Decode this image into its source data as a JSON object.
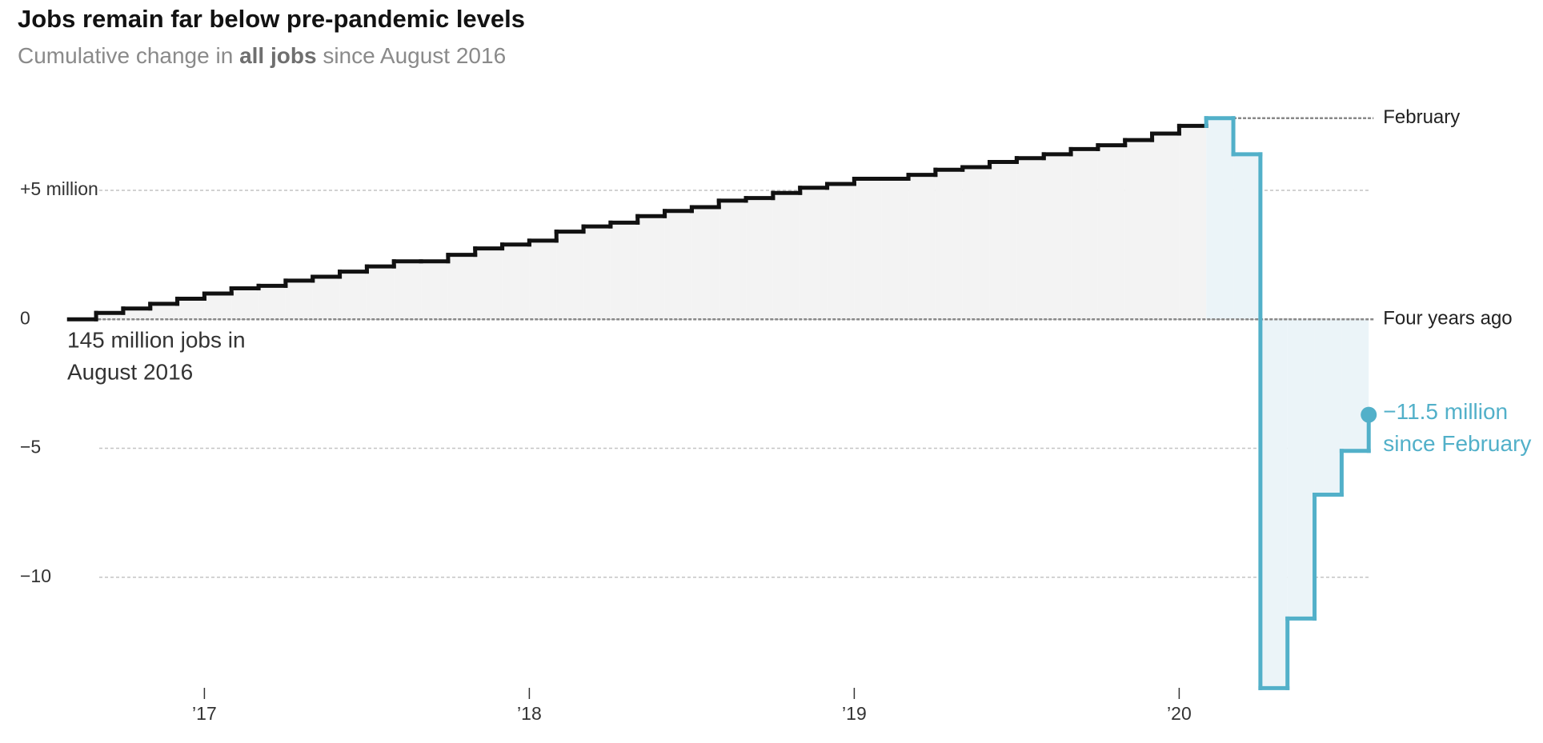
{
  "chart_data": {
    "type": "step",
    "title": "Jobs remain far below pre-pandemic levels",
    "subtitle": [
      "Cumulative change in",
      "all jobs",
      "since August 2016"
    ],
    "x": [
      "2016-08",
      "2016-09",
      "2016-10",
      "2016-11",
      "2016-12",
      "2017-01",
      "2017-02",
      "2017-03",
      "2017-04",
      "2017-05",
      "2017-06",
      "2017-07",
      "2017-08",
      "2017-09",
      "2017-10",
      "2017-11",
      "2017-12",
      "2018-01",
      "2018-02",
      "2018-03",
      "2018-04",
      "2018-05",
      "2018-06",
      "2018-07",
      "2018-08",
      "2018-09",
      "2018-10",
      "2018-11",
      "2018-12",
      "2019-01",
      "2019-02",
      "2019-03",
      "2019-04",
      "2019-05",
      "2019-06",
      "2019-07",
      "2019-08",
      "2019-09",
      "2019-10",
      "2019-11",
      "2019-12",
      "2020-01",
      "2020-02",
      "2020-03",
      "2020-04",
      "2020-05",
      "2020-06",
      "2020-07",
      "2020-08"
    ],
    "series": [
      {
        "color": "#111111",
        "area_color": "#f3f3f3",
        "values": [
          0,
          0.25,
          0.42,
          0.6,
          0.8,
          1.0,
          1.2,
          1.3,
          1.5,
          1.65,
          1.85,
          2.05,
          2.25,
          2.25,
          2.5,
          2.75,
          2.9,
          3.05,
          3.4,
          3.6,
          3.75,
          4.0,
          4.2,
          4.35,
          4.6,
          4.7,
          4.9,
          5.1,
          5.25,
          5.45,
          5.45,
          5.6,
          5.8,
          5.9,
          6.1,
          6.25,
          6.4,
          6.6,
          6.75,
          6.95,
          7.2,
          7.5,
          null,
          null,
          null,
          null,
          null,
          null,
          null
        ]
      },
      {
        "color": "#52b0c9",
        "area_color": "#ebf4f8",
        "values": [
          null,
          null,
          null,
          null,
          null,
          null,
          null,
          null,
          null,
          null,
          null,
          null,
          null,
          null,
          null,
          null,
          null,
          null,
          null,
          null,
          null,
          null,
          null,
          null,
          null,
          null,
          null,
          null,
          null,
          null,
          null,
          null,
          null,
          null,
          null,
          null,
          null,
          null,
          null,
          null,
          null,
          null,
          7.8,
          6.4,
          -14.3,
          -11.6,
          -6.8,
          -5.1,
          -3.7
        ]
      }
    ],
    "xlim": [
      "2016-07",
      "2021-01"
    ],
    "xticks": [
      {
        "value": "2017-01",
        "label": "’17"
      },
      {
        "value": "2018-01",
        "label": "’18"
      },
      {
        "value": "2019-01",
        "label": "’19"
      },
      {
        "value": "2020-01",
        "label": "’20"
      }
    ],
    "ylim": [
      -15,
      9
    ],
    "yticks": [
      {
        "value": 5,
        "label": "+5 million"
      },
      0,
      {
        "value": -5,
        "label": "−5"
      },
      {
        "value": -10,
        "label": "−10"
      }
    ],
    "grid": true,
    "annotations": {
      "start": [
        "145 million jobs in",
        "August 2016"
      ],
      "february": "February",
      "baseline": "Four years ago",
      "change": [
        "−11.5 million",
        "since February"
      ]
    }
  }
}
